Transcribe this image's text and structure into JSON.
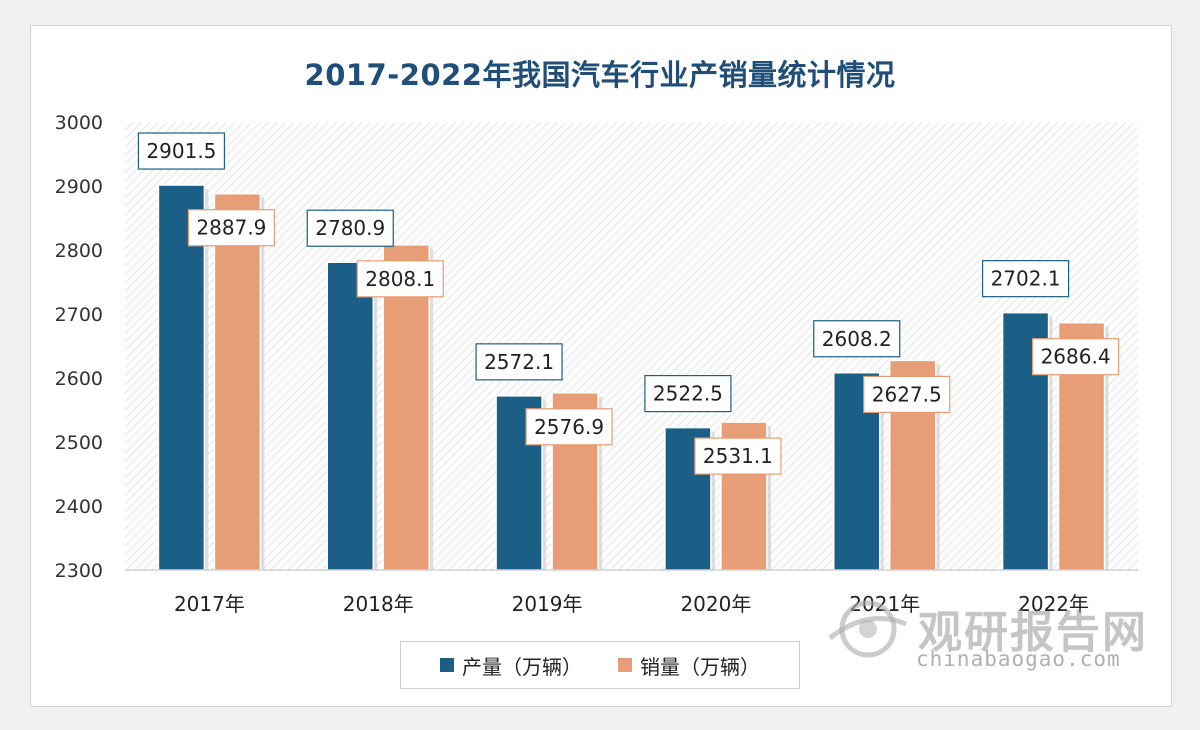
{
  "chart_data": {
    "type": "bar",
    "title": "2017-2022年我国汽车行业产销量统计情况",
    "categories": [
      "2017年",
      "2018年",
      "2019年",
      "2020年",
      "2021年",
      "2022年"
    ],
    "series": [
      {
        "name": "产量（万辆）",
        "color": "#1b5f87",
        "values": [
          2901.5,
          2780.9,
          2572.1,
          2522.5,
          2608.2,
          2702.1
        ]
      },
      {
        "name": "销量（万辆）",
        "color": "#e79d76",
        "values": [
          2887.9,
          2808.1,
          2576.9,
          2531.1,
          2627.5,
          2686.4
        ]
      }
    ],
    "yticks": [
      2300,
      2400,
      2500,
      2600,
      2700,
      2800,
      2900,
      3000
    ],
    "ylim": [
      2300,
      3000
    ],
    "grid": false,
    "legend": "bottom"
  },
  "watermark": {
    "cn": "观研报告网",
    "en": "chinabaogao.com"
  }
}
